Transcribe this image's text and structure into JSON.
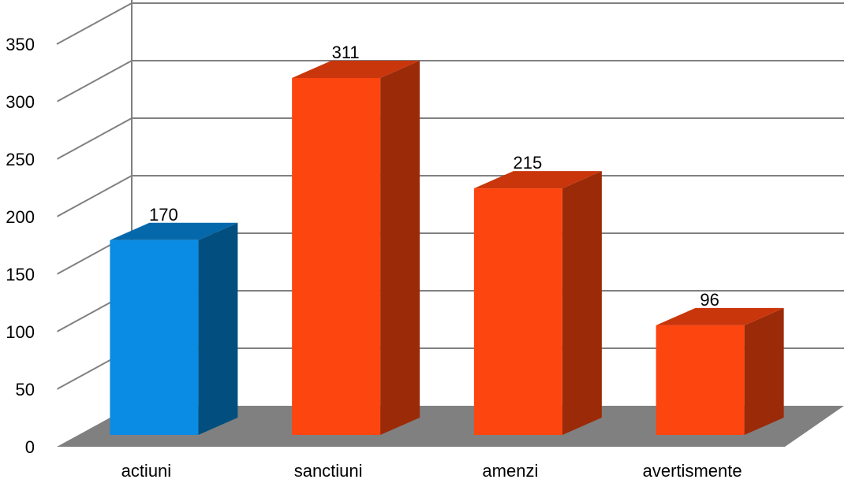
{
  "chart_data": {
    "type": "bar",
    "style": "3d-column",
    "categories": [
      "actiuni",
      "sanctiuni",
      "amenzi",
      "avertismente"
    ],
    "values": [
      170,
      311,
      215,
      96
    ],
    "data_labels": [
      "170",
      "311",
      "215",
      "96"
    ],
    "ylim": [
      0,
      350
    ],
    "yticks": [
      0,
      50,
      100,
      150,
      200,
      250,
      300,
      350
    ],
    "ytick_labels": [
      "0",
      "50",
      "100",
      "150",
      "200",
      "250",
      "300",
      "350"
    ],
    "grid": true,
    "legend": "none",
    "colors": {
      "bars": [
        "#0a8be4",
        "#fd4510",
        "#fd4510",
        "#fd4510"
      ],
      "bar_sides": [
        "#024f7f",
        "#9b2a08",
        "#9b2a08",
        "#9b2a08"
      ],
      "bar_tops": [
        "#0568ab",
        "#c9360b",
        "#c9360b",
        "#c9360b"
      ],
      "floor": "#808080",
      "grid": "#808080"
    }
  }
}
